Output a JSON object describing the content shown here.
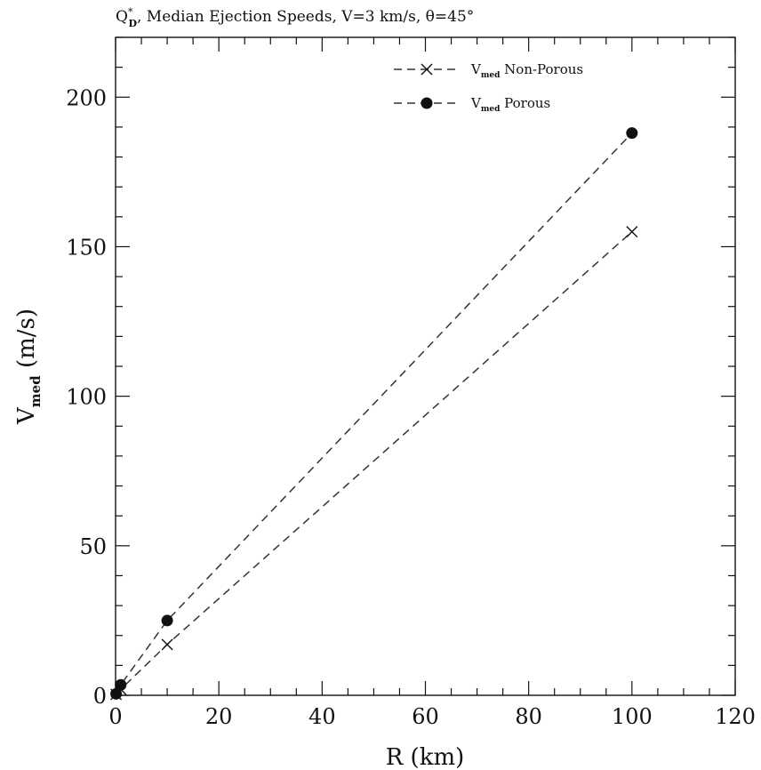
{
  "chart_data": {
    "type": "line",
    "title": {
      "q": "Q",
      "q_sup": "*",
      "q_sub": "D",
      "rest": ", Median Ejection Speeds, V=3 km/s, θ=45°"
    },
    "xlabel": "R (km)",
    "ylabel": {
      "main": "V",
      "sub": "med",
      "rest": " (m/s)"
    },
    "xlim": [
      0,
      120
    ],
    "ylim": [
      0,
      220
    ],
    "xticks": [
      0,
      20,
      40,
      60,
      80,
      100,
      120
    ],
    "yticks": [
      0,
      50,
      100,
      150,
      200
    ],
    "x_minor_step": 5,
    "y_minor_step": 10,
    "grid": false,
    "legend_position": "top-right",
    "series": [
      {
        "legend_main": "V",
        "legend_sub": "med",
        "legend_rest": " Non-Porous",
        "marker": "cross",
        "line_style": "dashed",
        "x": [
          0.1,
          1,
          10,
          100
        ],
        "y": [
          0.3,
          2.0,
          17,
          155
        ]
      },
      {
        "legend_main": "V",
        "legend_sub": "med",
        "legend_rest": " Porous",
        "marker": "filled-circle",
        "line_style": "dashed",
        "x": [
          0.1,
          1,
          10,
          100
        ],
        "y": [
          0.5,
          3.5,
          25,
          188
        ]
      }
    ]
  }
}
